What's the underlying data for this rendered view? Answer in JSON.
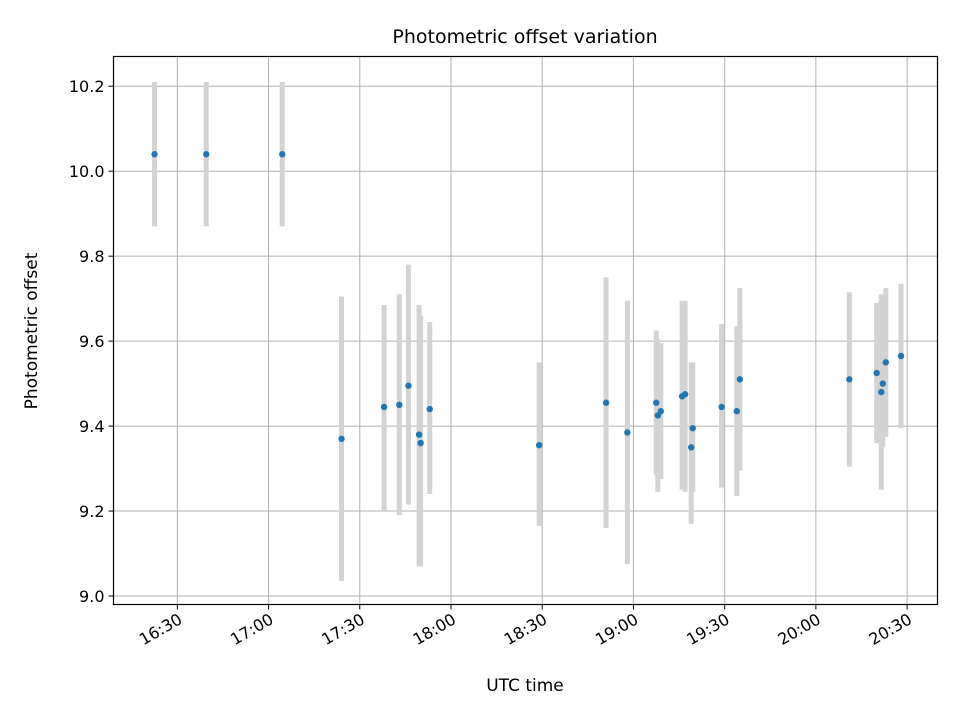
{
  "chart_data": {
    "type": "scatter",
    "title": "Photometric offset variation",
    "xlabel": "UTC time",
    "ylabel": "Photometric offset",
    "x_ticks": [
      "16:30",
      "17:00",
      "17:30",
      "18:00",
      "18:30",
      "19:00",
      "19:30",
      "20:00",
      "20:30"
    ],
    "y_ticks": [
      "9.0",
      "9.2",
      "9.4",
      "9.6",
      "9.8",
      "10.0",
      "10.2"
    ],
    "xlim": [
      "16:09",
      "20:40"
    ],
    "ylim": [
      8.98,
      10.27
    ],
    "grid": true,
    "colors": {
      "point": "#1f77b4",
      "errorbar": "#d3d3d3",
      "grid": "#b0b0b0"
    },
    "points": [
      {
        "x": "16:22:30",
        "y": 10.04,
        "err_low": 0.17,
        "err_high": 0.17
      },
      {
        "x": "16:39:30",
        "y": 10.04,
        "err_low": 0.17,
        "err_high": 0.17
      },
      {
        "x": "17:04:30",
        "y": 10.04,
        "err_low": 0.17,
        "err_high": 0.17
      },
      {
        "x": "17:24:00",
        "y": 9.37,
        "err_low": 0.335,
        "err_high": 0.335
      },
      {
        "x": "17:38:00",
        "y": 9.445,
        "err_low": 0.245,
        "err_high": 0.24
      },
      {
        "x": "17:43:00",
        "y": 9.45,
        "err_low": 0.26,
        "err_high": 0.26
      },
      {
        "x": "17:46:00",
        "y": 9.495,
        "err_low": 0.28,
        "err_high": 0.285
      },
      {
        "x": "17:49:30",
        "y": 9.38,
        "err_low": 0.31,
        "err_high": 0.305
      },
      {
        "x": "17:50:00",
        "y": 9.36,
        "err_low": 0.29,
        "err_high": 0.3
      },
      {
        "x": "17:53:00",
        "y": 9.44,
        "err_low": 0.2,
        "err_high": 0.205
      },
      {
        "x": "18:29:00",
        "y": 9.355,
        "err_low": 0.19,
        "err_high": 0.195
      },
      {
        "x": "18:51:00",
        "y": 9.455,
        "err_low": 0.295,
        "err_high": 0.295
      },
      {
        "x": "18:58:00",
        "y": 9.385,
        "err_low": 0.31,
        "err_high": 0.31
      },
      {
        "x": "19:07:30",
        "y": 9.455,
        "err_low": 0.17,
        "err_high": 0.17
      },
      {
        "x": "19:08:00",
        "y": 9.425,
        "err_low": 0.18,
        "err_high": 0.18
      },
      {
        "x": "19:09:00",
        "y": 9.435,
        "err_low": 0.16,
        "err_high": 0.16
      },
      {
        "x": "19:16:00",
        "y": 9.47,
        "err_low": 0.22,
        "err_high": 0.225
      },
      {
        "x": "19:17:00",
        "y": 9.475,
        "err_low": 0.23,
        "err_high": 0.22
      },
      {
        "x": "19:19:00",
        "y": 9.35,
        "err_low": 0.18,
        "err_high": 0.2
      },
      {
        "x": "19:19:30",
        "y": 9.395,
        "err_low": 0.15,
        "err_high": 0.155
      },
      {
        "x": "19:29:00",
        "y": 9.445,
        "err_low": 0.19,
        "err_high": 0.195
      },
      {
        "x": "19:34:00",
        "y": 9.435,
        "err_low": 0.2,
        "err_high": 0.2
      },
      {
        "x": "19:35:00",
        "y": 9.51,
        "err_low": 0.215,
        "err_high": 0.215
      },
      {
        "x": "20:11:00",
        "y": 9.51,
        "err_low": 0.205,
        "err_high": 0.205
      },
      {
        "x": "20:20:00",
        "y": 9.525,
        "err_low": 0.165,
        "err_high": 0.165
      },
      {
        "x": "20:21:30",
        "y": 9.48,
        "err_low": 0.23,
        "err_high": 0.23
      },
      {
        "x": "20:22:00",
        "y": 9.5,
        "err_low": 0.15,
        "err_high": 0.21
      },
      {
        "x": "20:23:00",
        "y": 9.55,
        "err_low": 0.175,
        "err_high": 0.175
      },
      {
        "x": "20:28:00",
        "y": 9.565,
        "err_low": 0.17,
        "err_high": 0.17
      }
    ]
  }
}
